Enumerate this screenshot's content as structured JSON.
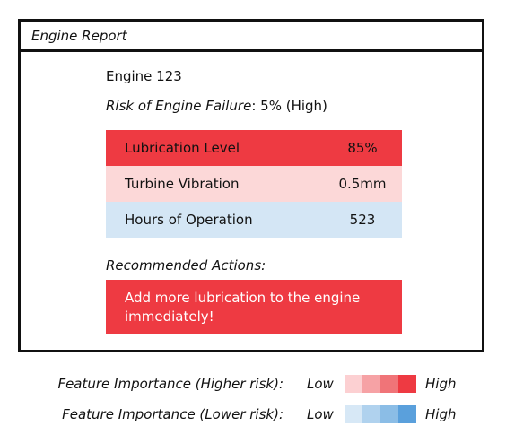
{
  "window": {
    "title": "Engine Report"
  },
  "engine": {
    "name": "Engine 123",
    "risk_label": "Risk of Engine Failure",
    "risk_value": ": 5% (High)"
  },
  "features": [
    {
      "label": "Lubrication Level",
      "value": "85%",
      "color": "#ee3a42",
      "text_color": "#111111"
    },
    {
      "label": "Turbine Vibration",
      "value": "0.5mm",
      "color": "#fcd8d8",
      "text_color": "#111111"
    },
    {
      "label": "Hours of Operation",
      "value": "523",
      "color": "#d4e6f5",
      "text_color": "#111111"
    }
  ],
  "actions": {
    "title": "Recommended Actions:",
    "text": "Add more lubrication to the engine immediately!",
    "color": "#ee3a42"
  },
  "legend": [
    {
      "label": "Feature Importance (Higher risk):",
      "low": "Low",
      "high": "High",
      "colors": [
        "#fcd0d2",
        "#f6a2a5",
        "#f07478",
        "#ee3a42"
      ]
    },
    {
      "label": "Feature Importance (Lower risk):",
      "low": "Low",
      "high": "High",
      "colors": [
        "#d7e8f6",
        "#b0d2ee",
        "#8bbde6",
        "#5aa0dc"
      ]
    }
  ]
}
